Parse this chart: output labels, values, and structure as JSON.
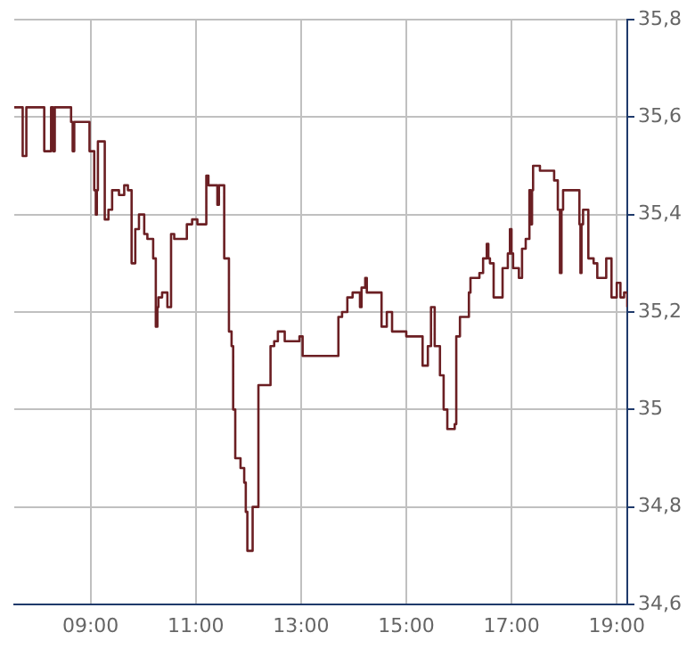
{
  "chart_data": {
    "type": "step",
    "x": [
      7.55,
      7.71,
      7.78,
      8.12,
      8.25,
      8.29,
      8.32,
      8.63,
      8.66,
      8.69,
      8.98,
      9.07,
      9.1,
      9.12,
      9.14,
      9.27,
      9.34,
      9.41,
      9.54,
      9.64,
      9.71,
      9.78,
      9.85,
      9.92,
      10.02,
      10.08,
      10.19,
      10.24,
      10.27,
      10.29,
      10.36,
      10.46,
      10.53,
      10.59,
      10.83,
      10.93,
      11.03,
      11.2,
      11.24,
      11.41,
      11.44,
      11.54,
      11.63,
      11.68,
      11.71,
      11.75,
      11.85,
      11.92,
      11.95,
      11.98,
      12.08,
      12.19,
      12.42,
      12.49,
      12.56,
      12.69,
      12.97,
      13.03,
      13.71,
      13.78,
      13.88,
      13.98,
      14.12,
      14.15,
      14.22,
      14.25,
      14.53,
      14.63,
      14.73,
      15.0,
      15.31,
      15.41,
      15.47,
      15.54,
      15.64,
      15.71,
      15.78,
      15.92,
      15.95,
      16.02,
      16.19,
      16.22,
      16.39,
      16.46,
      16.53,
      16.56,
      16.59,
      16.66,
      16.83,
      16.93,
      16.97,
      17.0,
      17.03,
      17.14,
      17.2,
      17.27,
      17.34,
      17.37,
      17.39,
      17.41,
      17.54,
      17.81,
      17.88,
      17.92,
      17.95,
      17.98,
      18.29,
      18.31,
      18.33,
      18.36,
      18.46,
      18.56,
      18.63,
      18.8,
      18.9,
      19.0,
      19.07,
      19.14,
      19.2
    ],
    "series": [
      {
        "color": "#6b1f23",
        "values": [
          35.62,
          35.52,
          35.62,
          35.53,
          35.62,
          35.53,
          35.62,
          35.59,
          35.53,
          35.59,
          35.53,
          35.45,
          35.4,
          35.45,
          35.55,
          35.39,
          35.41,
          35.45,
          35.44,
          35.46,
          35.45,
          35.3,
          35.37,
          35.4,
          35.36,
          35.35,
          35.31,
          35.17,
          35.21,
          35.23,
          35.24,
          35.21,
          35.36,
          35.35,
          35.38,
          35.39,
          35.38,
          35.48,
          35.46,
          35.42,
          35.46,
          35.31,
          35.16,
          35.13,
          35.0,
          34.9,
          34.88,
          34.85,
          34.79,
          34.71,
          34.8,
          35.05,
          35.13,
          35.14,
          35.16,
          35.14,
          35.15,
          35.11,
          35.19,
          35.2,
          35.23,
          35.24,
          35.21,
          35.25,
          35.27,
          35.24,
          35.17,
          35.2,
          35.16,
          35.15,
          35.09,
          35.13,
          35.21,
          35.13,
          35.07,
          35.0,
          34.96,
          34.97,
          35.15,
          35.19,
          35.24,
          35.27,
          35.28,
          35.31,
          35.34,
          35.31,
          35.3,
          35.23,
          35.29,
          35.32,
          35.37,
          35.32,
          35.29,
          35.27,
          35.33,
          35.35,
          35.45,
          35.38,
          35.45,
          35.5,
          35.49,
          35.47,
          35.41,
          35.28,
          35.41,
          35.45,
          35.38,
          35.28,
          35.38,
          35.41,
          35.31,
          35.3,
          35.27,
          35.31,
          35.23,
          35.26,
          35.23,
          35.24,
          35.21
        ]
      }
    ],
    "xlim": [
      7.55,
      19.2
    ],
    "xticks": [
      {
        "value": 9,
        "label": "09:00"
      },
      {
        "value": 11,
        "label": "11:00"
      },
      {
        "value": 13,
        "label": "13:00"
      },
      {
        "value": 15,
        "label": "15:00"
      },
      {
        "value": 17,
        "label": "17:00"
      },
      {
        "value": 19,
        "label": "19:00"
      }
    ],
    "ylim": [
      34.6,
      35.8
    ],
    "yticks": [
      {
        "value": 34.6,
        "label": "34,6"
      },
      {
        "value": 34.8,
        "label": "34,8"
      },
      35,
      {
        "value": 35.2,
        "label": "35,2"
      },
      {
        "value": 35.4,
        "label": "35,4"
      },
      {
        "value": 35.6,
        "label": "35,6"
      },
      {
        "value": 35.8,
        "label": "35,8"
      }
    ],
    "grid": true
  }
}
